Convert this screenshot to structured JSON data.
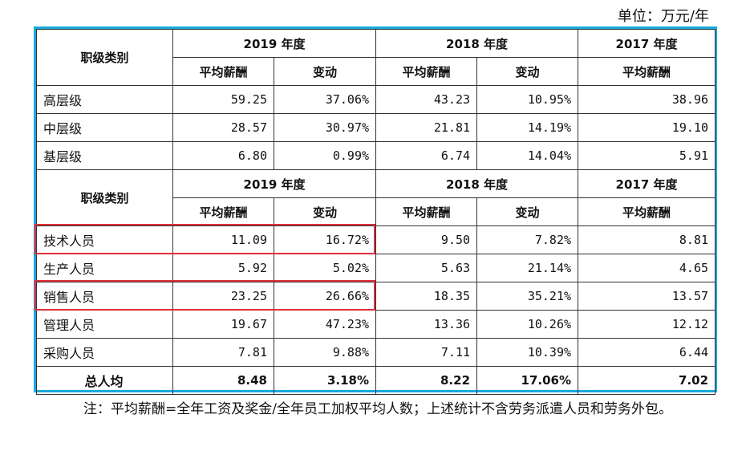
{
  "unit_label": "单位：万元/年",
  "header1": {
    "category_label": "职级类别",
    "years": [
      "2019 年度",
      "2018 年度",
      "2017 年度"
    ],
    "sub": [
      "平均薪酬",
      "变动",
      "平均薪酬",
      "变动",
      "平均薪酬"
    ]
  },
  "rows1": [
    {
      "label": "高层级",
      "v": [
        "59.25",
        "37.06%",
        "43.23",
        "10.95%",
        "38.96"
      ]
    },
    {
      "label": "中层级",
      "v": [
        "28.57",
        "30.97%",
        "21.81",
        "14.19%",
        "19.10"
      ]
    },
    {
      "label": "基层级",
      "v": [
        "6.80",
        "0.99%",
        "6.74",
        "14.04%",
        "5.91"
      ]
    }
  ],
  "header2": {
    "category_label": "职级类别",
    "years": [
      "2019 年度",
      "2018 年度",
      "2017 年度"
    ],
    "sub": [
      "平均薪酬",
      "变动",
      "平均薪酬",
      "变动",
      "平均薪酬"
    ]
  },
  "rows2": [
    {
      "label": "技术人员",
      "v": [
        "11.09",
        "16.72%",
        "9.50",
        "7.82%",
        "8.81"
      ]
    },
    {
      "label": "生产人员",
      "v": [
        "5.92",
        "5.02%",
        "5.63",
        "21.14%",
        "4.65"
      ]
    },
    {
      "label": "销售人员",
      "v": [
        "23.25",
        "26.66%",
        "18.35",
        "35.21%",
        "13.57"
      ]
    },
    {
      "label": "管理人员",
      "v": [
        "19.67",
        "47.23%",
        "13.36",
        "10.26%",
        "12.12"
      ]
    },
    {
      "label": "采购人员",
      "v": [
        "7.81",
        "9.88%",
        "7.11",
        "10.39%",
        "6.44"
      ]
    }
  ],
  "total": {
    "label": "总人均",
    "v": [
      "8.48",
      "3.18%",
      "8.22",
      "17.06%",
      "7.02"
    ]
  },
  "note": "注：平均薪酬=全年工资及奖金/全年员工加权平均人数；上述统计不含劳务派遣人员和劳务外包。",
  "highlight_color": "#e0303a",
  "border_color": "#19a9dd"
}
